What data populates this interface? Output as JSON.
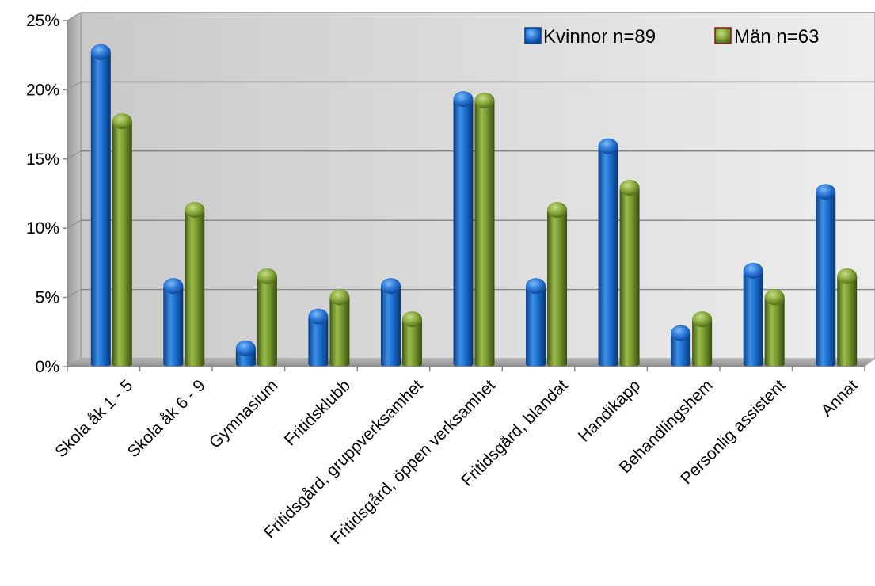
{
  "chart_data": {
    "type": "bar",
    "categories": [
      "Skola åk 1 - 5",
      "Skola åk 6 - 9",
      "Gymnasium",
      "Fritidsklubb",
      "Fritidsgård, gruppverksamhet",
      "Fritidsgård, öppen verksamhet",
      "Fritidsgård, blandat",
      "Handikapp",
      "Behandlingshem",
      "Personlig assistent",
      "Annat"
    ],
    "series": [
      {
        "name": "Kvinnor n=89",
        "color": "#1565C0",
        "values": [
          22.5,
          5.6,
          1.1,
          3.4,
          5.6,
          19.1,
          5.6,
          15.7,
          2.2,
          6.7,
          12.4
        ]
      },
      {
        "name": "Män n=63",
        "color": "#6B8E23",
        "values": [
          17.5,
          11.1,
          6.3,
          4.8,
          3.2,
          19.0,
          11.1,
          12.7,
          3.2,
          4.8,
          6.3
        ]
      }
    ],
    "y_ticks": [
      "0%",
      "5%",
      "10%",
      "15%",
      "20%",
      "25%"
    ],
    "ylim": [
      0,
      25
    ],
    "grid": true,
    "legend_position": "top-right",
    "style": "3d-cylinder"
  }
}
